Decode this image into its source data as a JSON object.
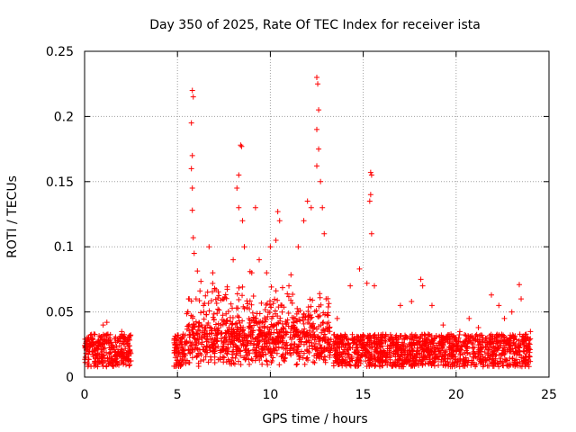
{
  "chart_data": {
    "type": "scatter",
    "title": "Day 350 of 2025, Rate Of TEC Index for receiver ista",
    "xlabel": "GPS time / hours",
    "ylabel": "ROTI / TECUs",
    "xlim": [
      0,
      25
    ],
    "ylim": [
      0,
      0.25
    ],
    "xticks": [
      0,
      5,
      10,
      15,
      20,
      25
    ],
    "yticks": [
      0,
      0.05,
      0.1,
      0.15,
      0.2,
      0.25
    ],
    "xtick_labels": [
      "0",
      "5",
      "10",
      "15",
      "20",
      "25"
    ],
    "ytick_labels": [
      "0",
      "0.05",
      "0.1",
      "0.15",
      "0.2",
      "0.25"
    ],
    "grid": true,
    "marker": "+",
    "color": "#ff0000",
    "series": [
      {
        "name": "ROTI",
        "peaks": [
          [
            0.2,
            0.03
          ],
          [
            0.5,
            0.033
          ],
          [
            1.0,
            0.04
          ],
          [
            1.2,
            0.042
          ],
          [
            2.0,
            0.035
          ],
          [
            2.4,
            0.03
          ],
          [
            5.0,
            0.032
          ],
          [
            5.3,
            0.033
          ],
          [
            5.6,
            0.06
          ],
          [
            5.8,
            0.22
          ],
          [
            5.85,
            0.215
          ],
          [
            5.75,
            0.195
          ],
          [
            5.8,
            0.17
          ],
          [
            5.75,
            0.16
          ],
          [
            5.8,
            0.145
          ],
          [
            5.8,
            0.128
          ],
          [
            5.85,
            0.107
          ],
          [
            5.9,
            0.095
          ],
          [
            6.0,
            0.06
          ],
          [
            6.4,
            0.055
          ],
          [
            6.7,
            0.1
          ],
          [
            6.9,
            0.08
          ],
          [
            7.0,
            0.068
          ],
          [
            7.5,
            0.06
          ],
          [
            8.0,
            0.09
          ],
          [
            8.2,
            0.145
          ],
          [
            8.3,
            0.155
          ],
          [
            8.4,
            0.178
          ],
          [
            8.45,
            0.177
          ],
          [
            8.3,
            0.13
          ],
          [
            8.5,
            0.12
          ],
          [
            8.6,
            0.1
          ],
          [
            9.0,
            0.08
          ],
          [
            9.2,
            0.13
          ],
          [
            9.4,
            0.09
          ],
          [
            9.8,
            0.08
          ],
          [
            10.0,
            0.1
          ],
          [
            10.4,
            0.127
          ],
          [
            10.5,
            0.12
          ],
          [
            10.3,
            0.105
          ],
          [
            11.0,
            0.07
          ],
          [
            11.5,
            0.1
          ],
          [
            11.8,
            0.12
          ],
          [
            12.0,
            0.135
          ],
          [
            12.2,
            0.13
          ],
          [
            12.5,
            0.23
          ],
          [
            12.55,
            0.225
          ],
          [
            12.6,
            0.205
          ],
          [
            12.5,
            0.19
          ],
          [
            12.6,
            0.175
          ],
          [
            12.5,
            0.162
          ],
          [
            12.7,
            0.15
          ],
          [
            12.8,
            0.13
          ],
          [
            12.9,
            0.11
          ],
          [
            13.0,
            0.06
          ],
          [
            13.6,
            0.045
          ],
          [
            14.3,
            0.07
          ],
          [
            14.8,
            0.083
          ],
          [
            15.2,
            0.072
          ],
          [
            15.4,
            0.157
          ],
          [
            15.45,
            0.155
          ],
          [
            15.4,
            0.14
          ],
          [
            15.35,
            0.135
          ],
          [
            15.45,
            0.11
          ],
          [
            15.6,
            0.07
          ],
          [
            16.0,
            0.03
          ],
          [
            17.0,
            0.055
          ],
          [
            17.6,
            0.058
          ],
          [
            18.1,
            0.075
          ],
          [
            18.2,
            0.07
          ],
          [
            18.7,
            0.055
          ],
          [
            19.3,
            0.04
          ],
          [
            20.2,
            0.035
          ],
          [
            20.7,
            0.045
          ],
          [
            21.2,
            0.038
          ],
          [
            21.9,
            0.063
          ],
          [
            22.3,
            0.055
          ],
          [
            22.6,
            0.045
          ],
          [
            23.0,
            0.05
          ],
          [
            23.4,
            0.071
          ],
          [
            23.5,
            0.06
          ],
          [
            24.0,
            0.035
          ]
        ]
      }
    ]
  }
}
